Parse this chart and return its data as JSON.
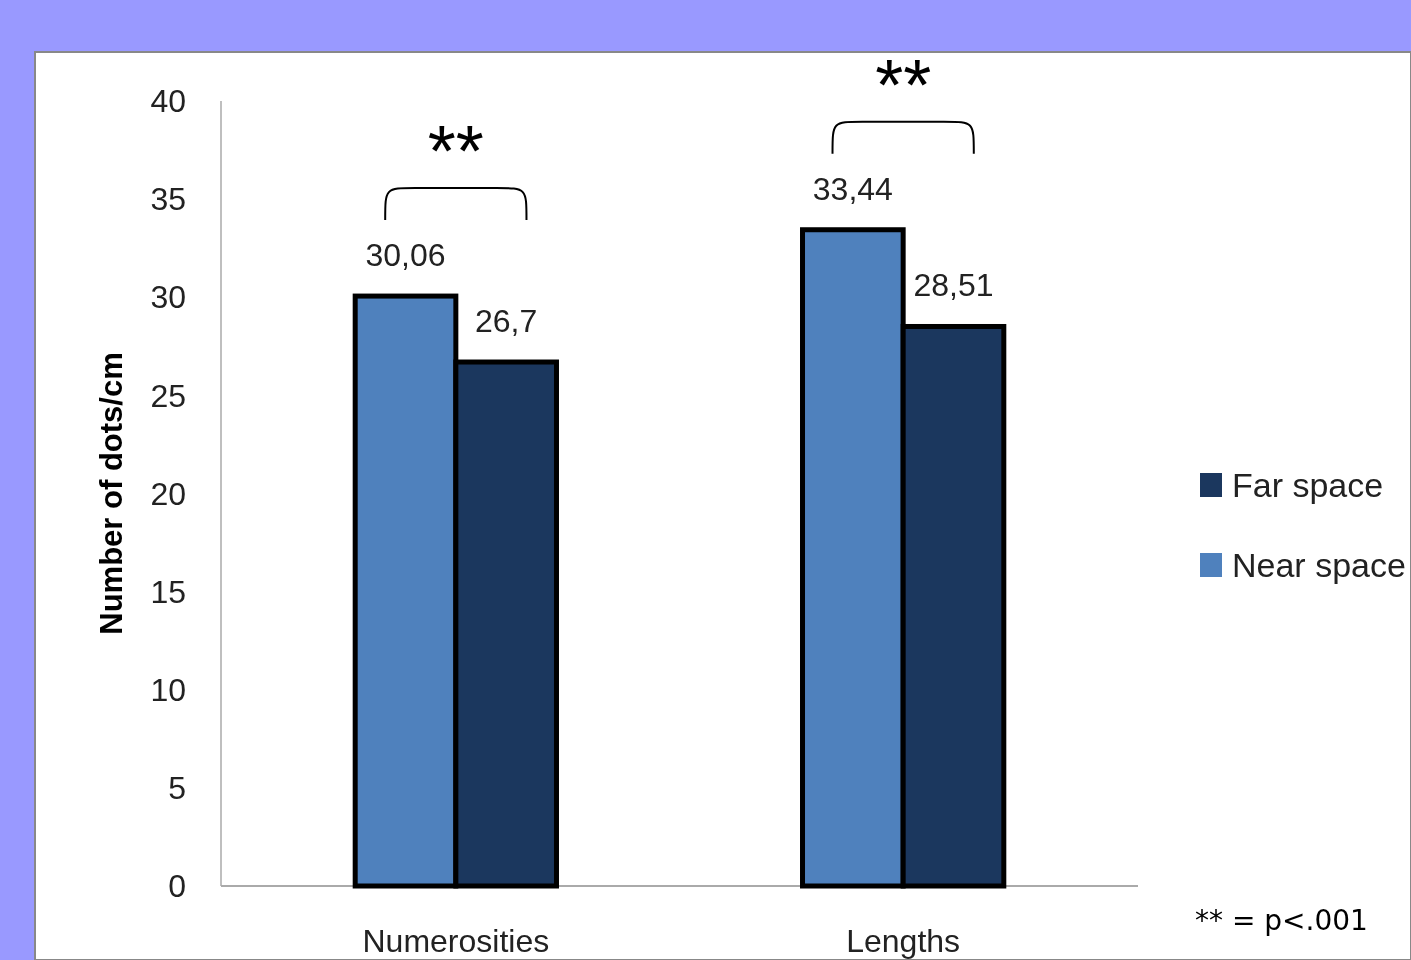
{
  "chart_data": {
    "type": "bar",
    "ylabel": "Number of dots/cm",
    "categories": [
      "Numerosities",
      "Lengths"
    ],
    "series": [
      {
        "name": "Near space",
        "color": "#4f81bd",
        "values": [
          30.06,
          33.44
        ],
        "value_labels": [
          "30,06",
          "33,44"
        ]
      },
      {
        "name": "Far space",
        "color": "#1b375e",
        "values": [
          26.7,
          28.51
        ],
        "value_labels": [
          "26,7",
          "28,51"
        ]
      }
    ],
    "ylim": [
      0,
      40
    ],
    "yticks": [
      0,
      5,
      10,
      15,
      20,
      25,
      30,
      35,
      40
    ],
    "grid": false,
    "legend": "right",
    "annotations": [
      "**",
      "**",
      "** = p<.001"
    ]
  }
}
